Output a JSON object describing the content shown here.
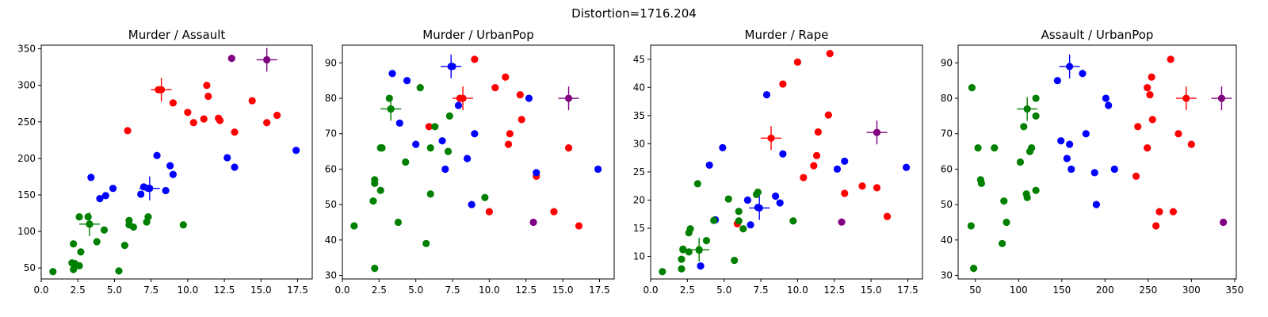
{
  "suptitle": "Distortion=1716.204",
  "colors": {
    "red": "#ff0000",
    "blue": "#0000ff",
    "green": "#008000",
    "purple": "#800080"
  },
  "chart_data": [
    {
      "type": "scatter",
      "title": "Murder / Assault",
      "xlim": [
        0,
        18.5
      ],
      "ylim": [
        35,
        355
      ],
      "xticks": [
        "0.0",
        "2.5",
        "5.0",
        "7.5",
        "10.0",
        "12.5",
        "15.0",
        "17.5"
      ],
      "yticks": [
        "50",
        "100",
        "150",
        "200",
        "250",
        "300",
        "350"
      ],
      "xtick_values": [
        0,
        2.5,
        5,
        7.5,
        10,
        12.5,
        15,
        17.5
      ],
      "ytick_values": [
        50,
        100,
        150,
        200,
        250,
        300,
        350
      ],
      "series": [
        {
          "color": "red",
          "points": [
            [
              5.9,
              238
            ],
            [
              8.0,
              294
            ],
            [
              9.0,
              276
            ],
            [
              10.0,
              263
            ],
            [
              10.4,
              249
            ],
            [
              11.1,
              254
            ],
            [
              11.3,
              300
            ],
            [
              11.4,
              285
            ],
            [
              12.1,
              255
            ],
            [
              12.2,
              252
            ],
            [
              13.2,
              236
            ],
            [
              14.4,
              279
            ],
            [
              15.4,
              249
            ],
            [
              16.1,
              259
            ]
          ]
        },
        {
          "color": "blue",
          "points": [
            [
              3.4,
              174
            ],
            [
              4.0,
              145
            ],
            [
              4.4,
              149
            ],
            [
              4.9,
              159
            ],
            [
              6.8,
              151
            ],
            [
              7.0,
              161
            ],
            [
              7.3,
              159
            ],
            [
              7.9,
              204
            ],
            [
              8.5,
              156
            ],
            [
              8.8,
              190
            ],
            [
              9.0,
              178
            ],
            [
              12.7,
              201
            ],
            [
              13.2,
              188
            ],
            [
              17.4,
              211
            ]
          ]
        },
        {
          "color": "green",
          "points": [
            [
              0.8,
              45
            ],
            [
              2.1,
              57
            ],
            [
              2.2,
              48
            ],
            [
              2.2,
              83
            ],
            [
              2.3,
              56
            ],
            [
              2.6,
              53
            ],
            [
              2.6,
              120
            ],
            [
              2.7,
              72
            ],
            [
              3.2,
              120
            ],
            [
              3.3,
              110
            ],
            [
              3.8,
              86
            ],
            [
              4.3,
              102
            ],
            [
              5.3,
              46
            ],
            [
              5.7,
              81
            ],
            [
              6.0,
              109
            ],
            [
              6.0,
              115
            ],
            [
              6.3,
              106
            ],
            [
              7.2,
              113
            ],
            [
              7.3,
              120
            ],
            [
              9.7,
              109
            ]
          ]
        },
        {
          "color": "purple",
          "points": [
            [
              13.0,
              337
            ]
          ]
        }
      ],
      "centroids": [
        {
          "color": "red",
          "point": [
            8.2,
            294
          ]
        },
        {
          "color": "blue",
          "point": [
            7.4,
            159
          ]
        },
        {
          "color": "green",
          "point": [
            3.3,
            110
          ]
        },
        {
          "color": "purple",
          "point": [
            15.4,
            335
          ]
        }
      ]
    },
    {
      "type": "scatter",
      "title": "Murder / UrbanPop",
      "xlim": [
        0,
        18.5
      ],
      "ylim": [
        29,
        95
      ],
      "xticks": [
        "0.0",
        "2.5",
        "5.0",
        "7.5",
        "10.0",
        "12.5",
        "15.0",
        "17.5"
      ],
      "yticks": [
        "30",
        "40",
        "50",
        "60",
        "70",
        "80",
        "90"
      ],
      "xtick_values": [
        0,
        2.5,
        5,
        7.5,
        10,
        12.5,
        15,
        17.5
      ],
      "ytick_values": [
        30,
        40,
        50,
        60,
        70,
        80,
        90
      ],
      "series": [
        {
          "color": "red",
          "points": [
            [
              5.9,
              72
            ],
            [
              8.0,
              80
            ],
            [
              9.0,
              91
            ],
            [
              10.0,
              48
            ],
            [
              10.4,
              83
            ],
            [
              11.1,
              86
            ],
            [
              11.3,
              67
            ],
            [
              11.4,
              70
            ],
            [
              12.1,
              81
            ],
            [
              12.2,
              74
            ],
            [
              13.2,
              58
            ],
            [
              14.4,
              48
            ],
            [
              15.4,
              66
            ],
            [
              16.1,
              44
            ]
          ]
        },
        {
          "color": "blue",
          "points": [
            [
              3.4,
              87
            ],
            [
              3.9,
              73
            ],
            [
              4.4,
              85
            ],
            [
              5.0,
              67
            ],
            [
              6.8,
              68
            ],
            [
              7.0,
              60
            ],
            [
              7.5,
              89
            ],
            [
              7.9,
              78
            ],
            [
              8.5,
              63
            ],
            [
              8.8,
              50
            ],
            [
              9.0,
              70
            ],
            [
              12.7,
              80
            ],
            [
              13.2,
              59
            ],
            [
              17.4,
              60
            ]
          ]
        },
        {
          "color": "green",
          "points": [
            [
              0.8,
              44
            ],
            [
              2.1,
              51
            ],
            [
              2.2,
              32
            ],
            [
              2.2,
              56
            ],
            [
              2.2,
              57
            ],
            [
              2.6,
              54
            ],
            [
              2.6,
              66
            ],
            [
              2.7,
              66
            ],
            [
              3.2,
              80
            ],
            [
              3.3,
              77
            ],
            [
              3.8,
              45
            ],
            [
              4.3,
              62
            ],
            [
              5.3,
              83
            ],
            [
              5.7,
              39
            ],
            [
              6.0,
              53
            ],
            [
              6.0,
              66
            ],
            [
              6.3,
              72
            ],
            [
              7.2,
              65
            ],
            [
              7.3,
              75
            ],
            [
              9.7,
              52
            ]
          ]
        },
        {
          "color": "purple",
          "points": [
            [
              13.0,
              45
            ]
          ]
        }
      ],
      "centroids": [
        {
          "color": "red",
          "point": [
            8.2,
            80
          ]
        },
        {
          "color": "blue",
          "point": [
            7.4,
            89
          ]
        },
        {
          "color": "green",
          "point": [
            3.3,
            77
          ]
        },
        {
          "color": "purple",
          "point": [
            15.4,
            80
          ]
        }
      ]
    },
    {
      "type": "scatter",
      "title": "Murder / Rape",
      "xlim": [
        0,
        18.5
      ],
      "ylim": [
        6,
        47.5
      ],
      "xticks": [
        "0.0",
        "2.5",
        "5.0",
        "7.5",
        "10.0",
        "12.5",
        "15.0",
        "17.5"
      ],
      "yticks": [
        "10",
        "15",
        "20",
        "25",
        "30",
        "35",
        "40",
        "45"
      ],
      "xtick_values": [
        0,
        2.5,
        5,
        7.5,
        10,
        12.5,
        15,
        17.5
      ],
      "ytick_values": [
        10,
        15,
        20,
        25,
        30,
        35,
        40,
        45
      ],
      "series": [
        {
          "color": "red",
          "points": [
            [
              5.9,
              15.8
            ],
            [
              9.0,
              40.6
            ],
            [
              10.0,
              44.5
            ],
            [
              10.4,
              24.0
            ],
            [
              11.1,
              26.1
            ],
            [
              11.3,
              27.9
            ],
            [
              11.4,
              32.1
            ],
            [
              12.1,
              35.1
            ],
            [
              12.2,
              46.0
            ],
            [
              13.2,
              21.2
            ],
            [
              14.4,
              22.5
            ],
            [
              15.4,
              22.2
            ],
            [
              16.1,
              17.1
            ]
          ]
        },
        {
          "color": "blue",
          "points": [
            [
              3.4,
              8.3
            ],
            [
              4.0,
              26.2
            ],
            [
              4.4,
              16.5
            ],
            [
              4.9,
              29.3
            ],
            [
              6.6,
              20.0
            ],
            [
              6.8,
              15.6
            ],
            [
              7.3,
              18.7
            ],
            [
              7.9,
              38.7
            ],
            [
              8.5,
              20.7
            ],
            [
              8.8,
              19.5
            ],
            [
              9.0,
              28.2
            ],
            [
              12.7,
              25.5
            ],
            [
              13.2,
              26.9
            ],
            [
              17.4,
              25.8
            ]
          ]
        },
        {
          "color": "green",
          "points": [
            [
              0.8,
              7.3
            ],
            [
              2.1,
              7.8
            ],
            [
              2.1,
              9.5
            ],
            [
              2.2,
              11.3
            ],
            [
              2.2,
              11.2
            ],
            [
              2.6,
              10.8
            ],
            [
              2.6,
              14.2
            ],
            [
              2.7,
              14.9
            ],
            [
              3.2,
              22.9
            ],
            [
              3.3,
              11.1
            ],
            [
              3.8,
              12.8
            ],
            [
              4.3,
              16.4
            ],
            [
              5.3,
              20.2
            ],
            [
              5.7,
              9.3
            ],
            [
              6.0,
              16.3
            ],
            [
              6.0,
              18.0
            ],
            [
              6.3,
              14.9
            ],
            [
              7.2,
              21.0
            ],
            [
              7.3,
              21.4
            ],
            [
              9.7,
              16.3
            ]
          ]
        },
        {
          "color": "purple",
          "points": [
            [
              13.0,
              16.1
            ]
          ]
        }
      ],
      "centroids": [
        {
          "color": "red",
          "point": [
            8.2,
            31.0
          ]
        },
        {
          "color": "blue",
          "point": [
            7.4,
            18.6
          ]
        },
        {
          "color": "green",
          "point": [
            3.3,
            11.2
          ]
        },
        {
          "color": "purple",
          "point": [
            15.4,
            32.0
          ]
        }
      ]
    },
    {
      "type": "scatter",
      "title": "Assault / UrbanPop",
      "xlim": [
        30,
        352
      ],
      "ylim": [
        29,
        95
      ],
      "xticks": [
        "50",
        "100",
        "150",
        "200",
        "250",
        "300",
        "350"
      ],
      "yticks": [
        "30",
        "40",
        "50",
        "60",
        "70",
        "80",
        "90"
      ],
      "xtick_values": [
        50,
        100,
        150,
        200,
        250,
        300,
        350
      ],
      "ytick_values": [
        30,
        40,
        50,
        60,
        70,
        80,
        90
      ],
      "series": [
        {
          "color": "red",
          "points": [
            [
              236,
              58
            ],
            [
              238,
              72
            ],
            [
              249,
              66
            ],
            [
              249,
              83
            ],
            [
              252,
              81
            ],
            [
              254,
              86
            ],
            [
              255,
              74
            ],
            [
              259,
              44
            ],
            [
              263,
              48
            ],
            [
              276,
              91
            ],
            [
              279,
              48
            ],
            [
              285,
              70
            ],
            [
              300,
              67
            ]
          ]
        },
        {
          "color": "blue",
          "points": [
            [
              145,
              85
            ],
            [
              149,
              68
            ],
            [
              156,
              63
            ],
            [
              159,
              67
            ],
            [
              161,
              60
            ],
            [
              174,
              87
            ],
            [
              178,
              70
            ],
            [
              188,
              59
            ],
            [
              190,
              50
            ],
            [
              201,
              80
            ],
            [
              204,
              78
            ],
            [
              211,
              60
            ]
          ]
        },
        {
          "color": "green",
          "points": [
            [
              45,
              44
            ],
            [
              46,
              83
            ],
            [
              48,
              32
            ],
            [
              53,
              66
            ],
            [
              56,
              57
            ],
            [
              57,
              56
            ],
            [
              72,
              66
            ],
            [
              81,
              39
            ],
            [
              83,
              51
            ],
            [
              86,
              45
            ],
            [
              102,
              62
            ],
            [
              106,
              72
            ],
            [
              109,
              53
            ],
            [
              110,
              52
            ],
            [
              113,
              65
            ],
            [
              115,
              66
            ],
            [
              120,
              54
            ],
            [
              120,
              80
            ],
            [
              120,
              75
            ]
          ]
        },
        {
          "color": "purple",
          "points": [
            [
              337,
              45
            ]
          ]
        }
      ],
      "centroids": [
        {
          "color": "red",
          "point": [
            294,
            80
          ]
        },
        {
          "color": "blue",
          "point": [
            159,
            89
          ]
        },
        {
          "color": "green",
          "point": [
            110,
            77
          ]
        },
        {
          "color": "purple",
          "point": [
            335,
            80
          ]
        }
      ]
    }
  ]
}
